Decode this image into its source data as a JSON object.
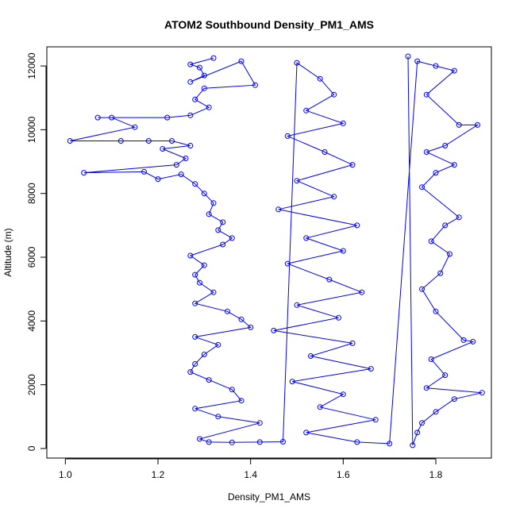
{
  "chart_data": {
    "type": "scatter",
    "title": "ATOM2 Southbound Density_PM1_AMS",
    "xlabel": "Density_PM1_AMS",
    "ylabel": "Altitude (m)",
    "xlim": [
      0.96,
      1.92
    ],
    "ylim": [
      -300,
      12600
    ],
    "xticks": [
      1.0,
      1.2,
      1.4,
      1.6,
      1.8
    ],
    "xtick_labels": [
      "1.0",
      "1.2",
      "1.4",
      "1.6",
      "1.8"
    ],
    "yticks": [
      0,
      2000,
      4000,
      6000,
      8000,
      10000,
      12000
    ],
    "ytick_labels": [
      "0",
      "2000",
      "4000",
      "6000",
      "8000",
      "10000",
      "12000"
    ],
    "grid": false,
    "legend": "none",
    "marker": "open-circle",
    "connected_by_lines": true,
    "series": [
      {
        "color": "#0000ff",
        "points": [
          [
            1.32,
            12250
          ],
          [
            1.27,
            12050
          ],
          [
            1.29,
            11950
          ],
          [
            1.3,
            11700
          ],
          [
            1.27,
            11500
          ],
          [
            1.38,
            12150
          ],
          [
            1.41,
            11400
          ],
          [
            1.3,
            11300
          ],
          [
            1.28,
            10950
          ],
          [
            1.31,
            10700
          ],
          [
            1.27,
            10450
          ],
          [
            1.22,
            10380
          ],
          [
            1.07,
            10380
          ],
          [
            1.1,
            10380
          ],
          [
            1.15,
            10080
          ],
          [
            1.01,
            9650
          ],
          [
            1.12,
            9650
          ],
          [
            1.18,
            9650
          ],
          [
            1.23,
            9650
          ],
          [
            1.27,
            9500
          ],
          [
            1.21,
            9400
          ],
          [
            1.26,
            9100
          ],
          [
            1.24,
            8900
          ],
          [
            1.04,
            8650
          ],
          [
            1.17,
            8680
          ],
          [
            1.2,
            8450
          ],
          [
            1.25,
            8600
          ],
          [
            1.28,
            8300
          ],
          [
            1.3,
            8000
          ],
          [
            1.32,
            7700
          ],
          [
            1.31,
            7350
          ],
          [
            1.34,
            7100
          ],
          [
            1.33,
            6850
          ],
          [
            1.36,
            6600
          ],
          [
            1.34,
            6400
          ],
          [
            1.27,
            6050
          ],
          [
            1.3,
            5750
          ],
          [
            1.28,
            5450
          ],
          [
            1.29,
            5200
          ],
          [
            1.32,
            4900
          ],
          [
            1.28,
            4550
          ],
          [
            1.35,
            4300
          ],
          [
            1.38,
            4050
          ],
          [
            1.4,
            3800
          ],
          [
            1.28,
            3500
          ],
          [
            1.33,
            3250
          ],
          [
            1.3,
            2950
          ],
          [
            1.28,
            2650
          ],
          [
            1.27,
            2400
          ],
          [
            1.31,
            2150
          ],
          [
            1.36,
            1850
          ],
          [
            1.38,
            1500
          ],
          [
            1.28,
            1250
          ],
          [
            1.33,
            1000
          ],
          [
            1.42,
            800
          ],
          [
            1.29,
            300
          ],
          [
            1.31,
            200
          ],
          [
            1.36,
            190
          ],
          [
            1.42,
            200
          ],
          [
            1.47,
            210
          ],
          [
            1.5,
            12100
          ],
          [
            1.55,
            11600
          ],
          [
            1.58,
            11100
          ],
          [
            1.52,
            10600
          ],
          [
            1.6,
            10200
          ],
          [
            1.48,
            9800
          ],
          [
            1.56,
            9300
          ],
          [
            1.62,
            8900
          ],
          [
            1.5,
            8400
          ],
          [
            1.58,
            7900
          ],
          [
            1.46,
            7500
          ],
          [
            1.63,
            7000
          ],
          [
            1.52,
            6600
          ],
          [
            1.6,
            6200
          ],
          [
            1.48,
            5800
          ],
          [
            1.57,
            5300
          ],
          [
            1.64,
            4900
          ],
          [
            1.5,
            4500
          ],
          [
            1.59,
            4100
          ],
          [
            1.45,
            3700
          ],
          [
            1.62,
            3300
          ],
          [
            1.53,
            2900
          ],
          [
            1.66,
            2500
          ],
          [
            1.49,
            2100
          ],
          [
            1.6,
            1700
          ],
          [
            1.55,
            1300
          ],
          [
            1.67,
            900
          ],
          [
            1.52,
            500
          ],
          [
            1.63,
            200
          ],
          [
            1.7,
            150
          ],
          [
            1.76,
            12150
          ],
          [
            1.8,
            12000
          ],
          [
            1.84,
            11850
          ],
          [
            1.78,
            11100
          ],
          [
            1.85,
            10150
          ],
          [
            1.89,
            10150
          ],
          [
            1.82,
            9500
          ],
          [
            1.78,
            9300
          ],
          [
            1.84,
            8900
          ],
          [
            1.8,
            8650
          ],
          [
            1.77,
            8200
          ],
          [
            1.85,
            7250
          ],
          [
            1.82,
            7000
          ],
          [
            1.79,
            6500
          ],
          [
            1.83,
            6100
          ],
          [
            1.81,
            5500
          ],
          [
            1.77,
            5000
          ],
          [
            1.8,
            4300
          ],
          [
            1.86,
            3400
          ],
          [
            1.88,
            3350
          ],
          [
            1.79,
            2800
          ],
          [
            1.82,
            2300
          ],
          [
            1.78,
            1900
          ],
          [
            1.9,
            1750
          ],
          [
            1.84,
            1550
          ],
          [
            1.8,
            1150
          ],
          [
            1.77,
            800
          ],
          [
            1.76,
            500
          ],
          [
            1.75,
            100
          ],
          [
            1.74,
            12300
          ]
        ]
      }
    ]
  }
}
